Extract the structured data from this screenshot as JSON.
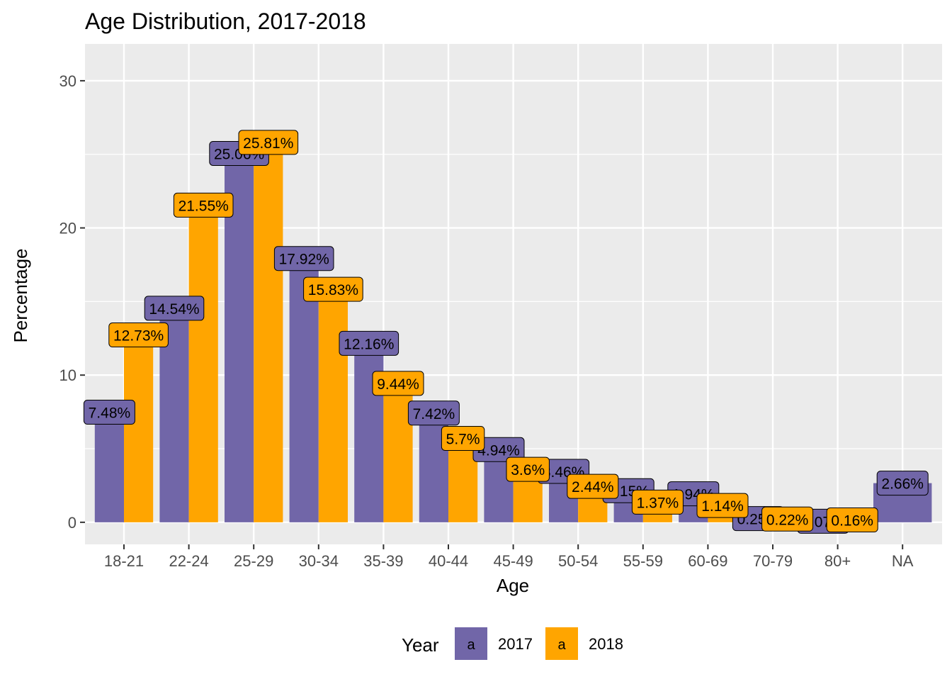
{
  "chart_data": {
    "type": "bar",
    "title": "Age Distribution, 2017-2018",
    "xlabel": "Age",
    "ylabel": "Percentage",
    "categories": [
      "18-21",
      "22-24",
      "25-29",
      "30-34",
      "35-39",
      "40-44",
      "45-49",
      "50-54",
      "55-59",
      "60-69",
      "70-79",
      "80+",
      "NA"
    ],
    "series": [
      {
        "name": "2017",
        "color": "#7166a8",
        "values": [
          7.48,
          14.54,
          25.06,
          17.92,
          12.16,
          7.42,
          4.94,
          3.46,
          2.15,
          1.94,
          0.25,
          0.07,
          2.66
        ],
        "labels": [
          "7.48%",
          "14.54%",
          "25.06%",
          "17.92%",
          "12.16%",
          "7.42%",
          "4.94%",
          "3.46%",
          "2.15%",
          "1.94%",
          "0.25%",
          "0.07%",
          "2.66%"
        ]
      },
      {
        "name": "2018",
        "color": "#ffa500",
        "values": [
          12.73,
          21.55,
          25.81,
          15.83,
          9.44,
          5.7,
          3.6,
          2.44,
          1.37,
          1.14,
          0.22,
          0.16,
          null
        ],
        "labels": [
          "12.73%",
          "21.55%",
          "25.81%",
          "15.83%",
          "9.44%",
          "5.7%",
          "3.6%",
          "2.44%",
          "1.37%",
          "1.14%",
          "0.22%",
          "0.16%",
          ""
        ]
      }
    ],
    "yticks": [
      "0",
      "10",
      "20",
      "30"
    ],
    "ylim": [
      -1.5,
      32.5
    ],
    "grid": true,
    "panel_background": "#ebebeb",
    "legend": {
      "title": "Year",
      "position": "bottom",
      "key_glyph": "a",
      "entries": [
        "2017",
        "2018"
      ]
    }
  }
}
